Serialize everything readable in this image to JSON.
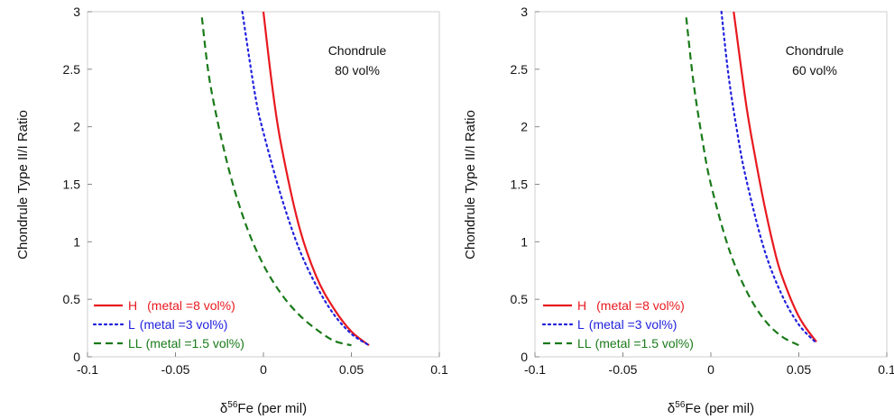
{
  "chart_data": [
    {
      "type": "line",
      "annotation": [
        "Chondrule",
        "80 vol%"
      ],
      "xlabel_prefix": "δ",
      "xlabel_sup": "56",
      "xlabel_suffix": "Fe (per mil)",
      "ylabel": "Chondrule Type II/I Ratio",
      "xlim": [
        -0.1,
        0.1
      ],
      "ylim": [
        0,
        3
      ],
      "xticks": [
        -0.1,
        -0.05,
        0,
        0.05,
        0.1
      ],
      "xtick_labels": [
        "-0.1",
        "-0.05",
        "0",
        "0.05",
        "0.1"
      ],
      "yticks": [
        0,
        0.5,
        1,
        1.5,
        2,
        2.5,
        3
      ],
      "ytick_labels": [
        "0",
        "0.5",
        "1",
        "1.5",
        "2",
        "2.5",
        "3"
      ],
      "legend_position": "bottom-left",
      "series": [
        {
          "name": "H",
          "legend_detail": "(metal =8 vol%)",
          "color": "#e8191f",
          "dash": "solid",
          "x": [
            0.0,
            0.005,
            0.01,
            0.02,
            0.03,
            0.04,
            0.05,
            0.06
          ],
          "y": [
            3.0,
            2.35,
            1.85,
            1.15,
            0.7,
            0.42,
            0.22,
            0.1
          ]
        },
        {
          "name": "L",
          "legend_detail": "(metal =3 vol%)",
          "color": "#2222dd",
          "dash": "dotted",
          "x": [
            -0.012,
            -0.005,
            0.0,
            0.01,
            0.02,
            0.03,
            0.04,
            0.05,
            0.06
          ],
          "y": [
            3.0,
            2.3,
            1.95,
            1.4,
            0.95,
            0.62,
            0.37,
            0.2,
            0.1
          ]
        },
        {
          "name": "LL",
          "legend_detail": "(metal =1.5 vol%)",
          "color": "#1a7a1a",
          "dash": "dashed",
          "x": [
            -0.035,
            -0.03,
            -0.02,
            -0.01,
            0.0,
            0.01,
            0.02,
            0.03,
            0.04,
            0.05
          ],
          "y": [
            2.95,
            2.35,
            1.65,
            1.15,
            0.8,
            0.55,
            0.37,
            0.24,
            0.14,
            0.1
          ]
        }
      ]
    },
    {
      "type": "line",
      "annotation": [
        "Chondrule",
        "60 vol%"
      ],
      "xlabel_prefix": "δ",
      "xlabel_sup": "56",
      "xlabel_suffix": "Fe (per mil)",
      "ylabel": "Chondrule Type II/I Ratio",
      "xlim": [
        -0.1,
        0.1
      ],
      "ylim": [
        0,
        3
      ],
      "xticks": [
        -0.1,
        -0.05,
        0,
        0.05,
        0.1
      ],
      "xtick_labels": [
        "-0.1",
        "-0.05",
        "0",
        "0.05",
        "0.1"
      ],
      "yticks": [
        0,
        0.5,
        1,
        1.5,
        2,
        2.5,
        3
      ],
      "ytick_labels": [
        "0",
        "0.5",
        "1",
        "1.5",
        "2",
        "2.5",
        "3"
      ],
      "legend_position": "bottom-left",
      "series": [
        {
          "name": "H",
          "legend_detail": "(metal =8 vol%)",
          "color": "#e8191f",
          "dash": "solid",
          "x": [
            0.013,
            0.02,
            0.025,
            0.03,
            0.035,
            0.04,
            0.05,
            0.06
          ],
          "y": [
            3.0,
            2.2,
            1.75,
            1.35,
            1.0,
            0.72,
            0.35,
            0.13
          ]
        },
        {
          "name": "L",
          "legend_detail": "(metal =3 vol%)",
          "color": "#2222dd",
          "dash": "dotted",
          "x": [
            0.006,
            0.01,
            0.015,
            0.02,
            0.03,
            0.04,
            0.05,
            0.06
          ],
          "y": [
            3.0,
            2.45,
            1.95,
            1.55,
            0.95,
            0.55,
            0.28,
            0.12
          ]
        },
        {
          "name": "LL",
          "legend_detail": "(metal =1.5 vol%)",
          "color": "#1a7a1a",
          "dash": "dashed",
          "x": [
            -0.014,
            -0.01,
            -0.005,
            0.0,
            0.01,
            0.02,
            0.03,
            0.04,
            0.05
          ],
          "y": [
            2.95,
            2.4,
            1.9,
            1.5,
            0.95,
            0.58,
            0.33,
            0.18,
            0.1
          ]
        }
      ]
    }
  ]
}
